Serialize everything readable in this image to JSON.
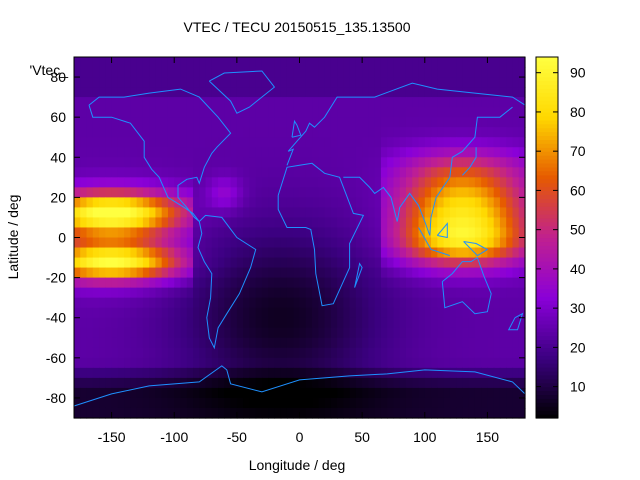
{
  "chart_data": {
    "type": "heatmap",
    "title": "VTEC / TECU 20150515_135.13500",
    "xlabel": "Longitude / deg",
    "ylabel": "Latitude / deg",
    "series_label": "'Vtec_",
    "xlim": [
      -180,
      180
    ],
    "ylim": [
      -90,
      90
    ],
    "xticks": [
      -150,
      -100,
      -50,
      0,
      50,
      100,
      150
    ],
    "yticks": [
      -80,
      -60,
      -40,
      -20,
      0,
      20,
      40,
      60,
      80
    ],
    "colorbar": {
      "min": 2,
      "max": 94,
      "ticks": [
        10,
        20,
        30,
        40,
        50,
        60,
        70,
        80,
        90
      ]
    },
    "colormap": [
      "#000000",
      "#3b0080",
      "#8a00d8",
      "#c02090",
      "#e65a00",
      "#ffd800",
      "#ffff40"
    ],
    "coastline_color": "#1e90ff",
    "grid": false,
    "legend": "top-left",
    "features": [
      {
        "label": "equatorial-anomaly-pacific",
        "lon": [
          -180,
          -88
        ],
        "lat": [
          -22,
          30
        ],
        "peak": 82
      },
      {
        "label": "equatorial-anomaly-asia",
        "lon": [
          68,
          180
        ],
        "lat": [
          -18,
          48
        ],
        "peak": 88
      },
      {
        "label": "low-tec-atlantic-africa",
        "lon": [
          -90,
          70
        ],
        "lat": [
          -90,
          10
        ],
        "min": 4
      },
      {
        "label": "polar-south",
        "lon": [
          -180,
          180
        ],
        "lat": [
          -90,
          -65
        ],
        "min": 2
      }
    ]
  }
}
